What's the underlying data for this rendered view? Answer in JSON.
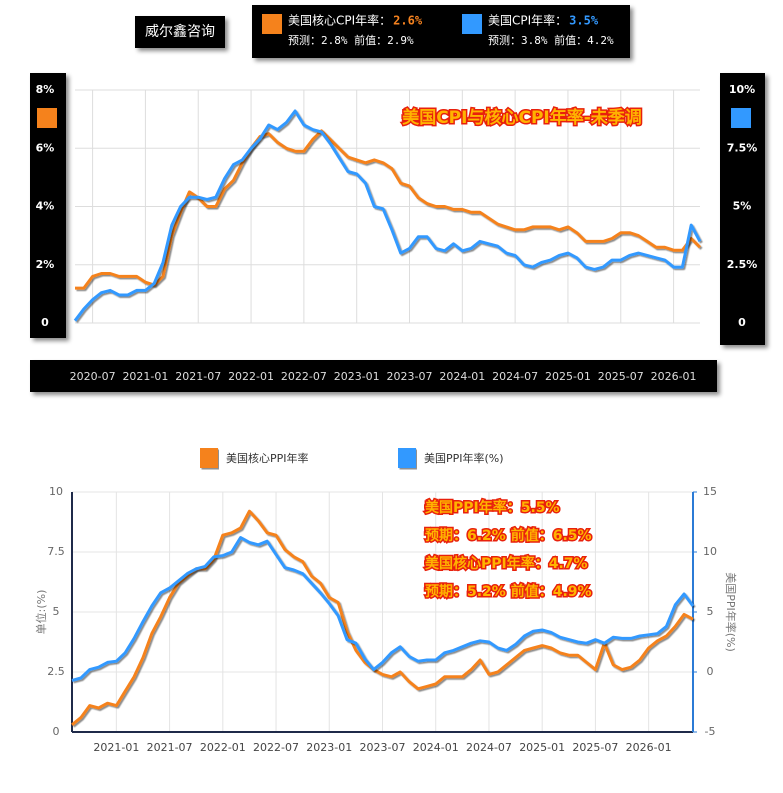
{
  "header": {
    "brand": "威尔鑫咨询",
    "legend": [
      {
        "name": "美国核心CPI年率：",
        "latest": "2.6%",
        "detail": "预测：2.8% 前值：2.9%",
        "color": "#f5821f"
      },
      {
        "name": "美国CPI年率：",
        "latest": "3.5%",
        "detail": "预测：3.8% 前值：4.2%",
        "color": "#3399ff"
      }
    ]
  },
  "chart_data": [
    {
      "type": "line",
      "title": "美国CPI与核心CPI年率-未季调",
      "categories": [
        null,
        null,
        "2020-07",
        null,
        null,
        null,
        null,
        null,
        "2021-01",
        null,
        null,
        null,
        null,
        null,
        "2021-07",
        null,
        null,
        null,
        null,
        null,
        "2022-01",
        null,
        null,
        null,
        null,
        null,
        "2022-07",
        null,
        null,
        null,
        null,
        null,
        "2023-01",
        null,
        null,
        null,
        null,
        null,
        "2023-07",
        null,
        null,
        null,
        null,
        null,
        "2024-01",
        null,
        null,
        null,
        null,
        null,
        "2024-07",
        null,
        null,
        null,
        null,
        null,
        "2025-01",
        null,
        null,
        null,
        null,
        null,
        "2025-07",
        null,
        null,
        null,
        null,
        null,
        "2026-01",
        null,
        null,
        null
      ],
      "series": [
        {
          "color": "#f5821f",
          "values": [
            1.2,
            1.2,
            1.6,
            1.7,
            1.7,
            1.6,
            1.6,
            1.6,
            1.4,
            1.3,
            1.6,
            3.0,
            3.8,
            4.5,
            4.3,
            4.0,
            4.0,
            4.6,
            4.9,
            5.5,
            6.0,
            6.4,
            6.5,
            6.2,
            6.0,
            5.9,
            5.9,
            6.3,
            6.6,
            6.3,
            6.0,
            5.7,
            5.6,
            5.5,
            5.6,
            5.5,
            5.3,
            4.8,
            4.7,
            4.3,
            4.1,
            4.0,
            4.0,
            3.9,
            3.9,
            3.8,
            3.8,
            3.6,
            3.4,
            3.3,
            3.2,
            3.2,
            3.3,
            3.3,
            3.3,
            3.2,
            3.3,
            3.1,
            2.8,
            2.8,
            2.8,
            2.9,
            3.1,
            3.1,
            3.0,
            2.8,
            2.6,
            2.6,
            2.5,
            2.5,
            2.9,
            2.6
          ]
        },
        {
          "color": "#3399ff",
          "axis": "y2",
          "values": [
            0.1,
            0.6,
            1.0,
            1.3,
            1.4,
            1.2,
            1.2,
            1.4,
            1.4,
            1.7,
            2.6,
            4.2,
            5.0,
            5.4,
            5.4,
            5.3,
            5.4,
            6.2,
            6.8,
            7.0,
            7.5,
            7.9,
            8.5,
            8.3,
            8.6,
            9.1,
            8.5,
            8.3,
            8.2,
            7.7,
            7.1,
            6.5,
            6.4,
            6.0,
            5.0,
            4.9,
            4.0,
            3.0,
            3.2,
            3.7,
            3.7,
            3.2,
            3.1,
            3.4,
            3.1,
            3.2,
            3.5,
            3.4,
            3.3,
            3.0,
            2.9,
            2.5,
            2.4,
            2.6,
            2.7,
            2.9,
            3.0,
            2.8,
            2.4,
            2.3,
            2.4,
            2.7,
            2.7,
            2.9,
            3.0,
            2.9,
            2.8,
            2.7,
            2.4,
            2.4,
            4.2,
            3.5
          ]
        }
      ],
      "ylim": [
        0,
        8
      ],
      "yticks": [
        0,
        {
          "value": 2,
          "label": "2%"
        },
        {
          "value": 4,
          "label": "4%"
        },
        {
          "value": 6,
          "label": "6%"
        },
        {
          "value": 8,
          "label": "8%"
        }
      ],
      "y2lim": [
        0,
        10
      ],
      "y2ticks": [
        0,
        {
          "value": 2.5,
          "label": "2.5%"
        },
        {
          "value": 5,
          "label": "5%"
        },
        {
          "value": 7.5,
          "label": "7.5%"
        },
        {
          "value": 10,
          "label": "10%"
        }
      ],
      "grid": true
    },
    {
      "type": "line",
      "ylabel": "单位:(%)",
      "y2label": "美国PPI年率(%)",
      "annotations": [
        "美国PPI年率：5.5%",
        "预期：6.2%  前值：6.5%",
        "美国核心PPI年率：4.7%",
        "预期：5.2%  前值：4.9%"
      ],
      "categories": [
        null,
        null,
        null,
        null,
        null,
        "2021-01",
        null,
        null,
        null,
        null,
        null,
        "2021-07",
        null,
        null,
        null,
        null,
        null,
        "2022-01",
        null,
        null,
        null,
        null,
        null,
        "2022-07",
        null,
        null,
        null,
        null,
        null,
        "2023-01",
        null,
        null,
        null,
        null,
        null,
        "2023-07",
        null,
        null,
        null,
        null,
        null,
        "2024-01",
        null,
        null,
        null,
        null,
        null,
        "2024-07",
        null,
        null,
        null,
        null,
        null,
        "2025-01",
        null,
        null,
        null,
        null,
        null,
        "2025-07",
        null,
        null,
        null,
        null,
        null,
        "2026-01",
        null,
        null,
        null,
        null,
        null
      ],
      "series": [
        {
          "name": "美国核心PPI年率",
          "color": "#f5821f",
          "values": [
            0.3,
            0.6,
            1.1,
            1.0,
            1.2,
            1.1,
            1.7,
            2.3,
            3.1,
            4.1,
            4.8,
            5.6,
            6.2,
            6.5,
            6.8,
            6.8,
            7.2,
            8.2,
            8.3,
            8.5,
            9.2,
            8.8,
            8.3,
            8.2,
            7.6,
            7.3,
            7.1,
            6.5,
            6.2,
            5.6,
            5.4,
            4.2,
            3.4,
            2.9,
            2.6,
            2.4,
            2.3,
            2.5,
            2.1,
            1.8,
            1.9,
            2.0,
            2.3,
            2.3,
            2.3,
            2.6,
            3.0,
            2.4,
            2.5,
            2.8,
            3.1,
            3.4,
            3.5,
            3.6,
            3.5,
            3.3,
            3.2,
            3.2,
            2.9,
            2.6,
            3.7,
            2.8,
            2.6,
            2.7,
            3.0,
            3.5,
            3.8,
            4.0,
            4.4,
            4.9,
            4.7
          ]
        },
        {
          "name": "美国PPI年率(%)",
          "color": "#3399ff",
          "axis": "y2",
          "values": [
            -0.7,
            -0.5,
            0.2,
            0.4,
            0.8,
            0.9,
            1.6,
            2.8,
            4.2,
            5.5,
            6.6,
            7.0,
            7.6,
            8.2,
            8.6,
            8.8,
            9.6,
            9.7,
            10.0,
            11.2,
            10.8,
            10.6,
            10.9,
            9.8,
            8.7,
            8.5,
            8.2,
            7.4,
            6.6,
            5.7,
            4.7,
            2.7,
            2.4,
            1.1,
            0.2,
            0.8,
            1.6,
            2.1,
            1.3,
            0.9,
            1.0,
            1.0,
            1.6,
            1.8,
            2.1,
            2.4,
            2.6,
            2.5,
            2.0,
            1.8,
            2.3,
            3.0,
            3.4,
            3.5,
            3.3,
            2.9,
            2.7,
            2.5,
            2.4,
            2.7,
            2.4,
            2.9,
            2.8,
            2.8,
            3.0,
            3.1,
            3.2,
            3.8,
            5.6,
            6.5,
            5.5
          ]
        }
      ],
      "ylim": [
        0,
        10
      ],
      "yticks": [
        0,
        2.5,
        5,
        7.5,
        10
      ],
      "y2lim": [
        -5,
        15
      ],
      "y2ticks": [
        -5,
        0,
        5,
        10,
        15
      ],
      "grid": true
    }
  ]
}
